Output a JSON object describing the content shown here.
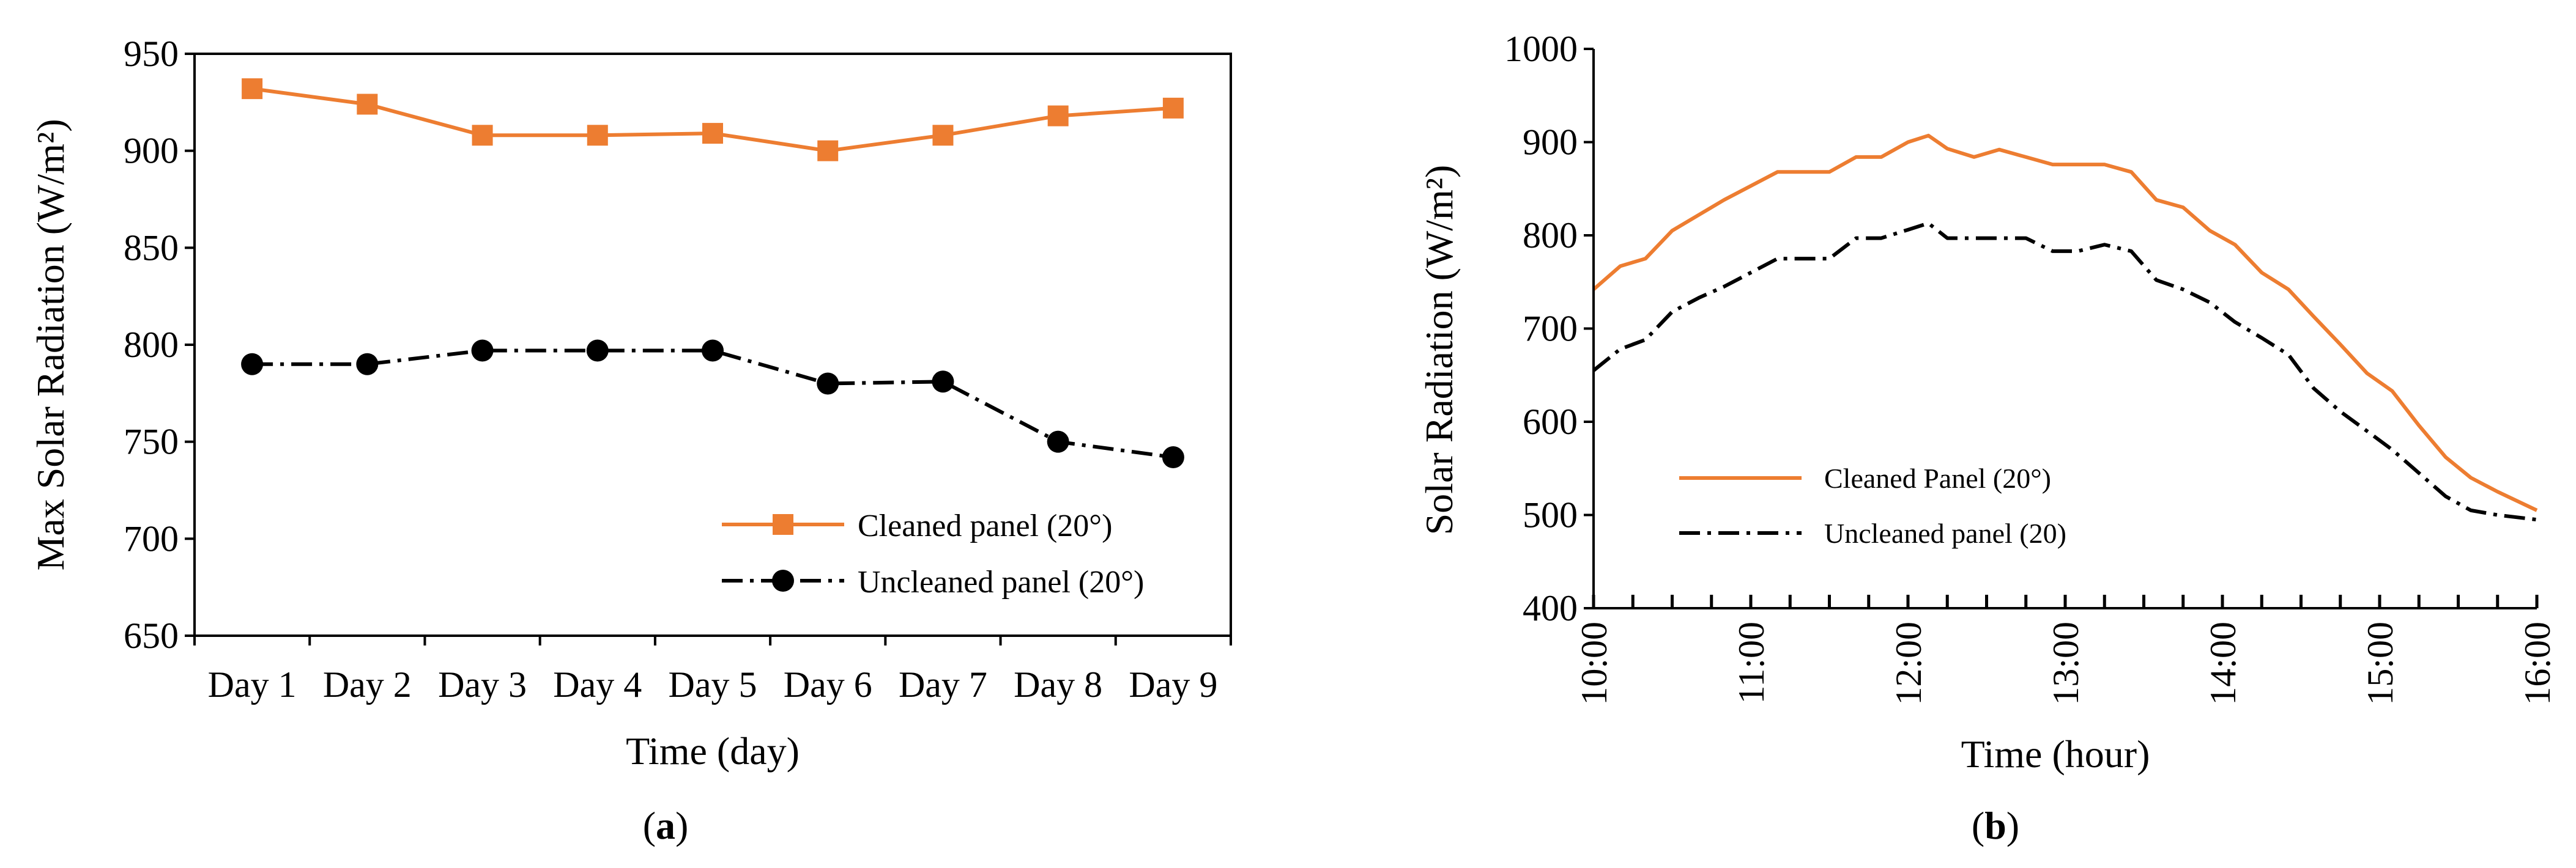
{
  "chart_data": [
    {
      "panel": "a",
      "type": "line",
      "caption": {
        "open": "(",
        "label": "a",
        "close": ")"
      },
      "xlabel": "Time (day)",
      "ylabel": "Max Solar Radiation (W/m²)",
      "ylim": [
        650,
        950
      ],
      "yticks": [
        650,
        700,
        750,
        800,
        850,
        900,
        950
      ],
      "categories": [
        "Day 1",
        "Day 2",
        "Day 3",
        "Day 4",
        "Day 5",
        "Day 6",
        "Day 7",
        "Day 8",
        "Day 9"
      ],
      "series": [
        {
          "name": "Cleaned panel (20°)",
          "color": "#ED7D31",
          "marker": "square",
          "dash": "solid",
          "values": [
            932,
            924,
            908,
            908,
            909,
            900,
            908,
            918,
            922
          ]
        },
        {
          "name": "Uncleaned panel (20°)",
          "color": "#000000",
          "marker": "circle",
          "dash": "dashdot",
          "values": [
            790,
            790,
            797,
            797,
            797,
            780,
            781,
            750,
            742
          ]
        }
      ],
      "legend": "lower-right"
    },
    {
      "panel": "b",
      "type": "line",
      "caption": {
        "open": "(",
        "label": "b",
        "close": ")"
      },
      "xlabel": "Time (hour)",
      "ylabel": "Solar Radiation (W/m²)",
      "ylim": [
        400,
        1000
      ],
      "yticks": [
        400,
        500,
        600,
        700,
        800,
        900,
        1000
      ],
      "xlim": [
        10,
        16
      ],
      "xticklabels": [
        "10:00",
        "11:00",
        "12:00",
        "13:00",
        "14:00",
        "15:00",
        "16:00"
      ],
      "xtick_hours": [
        10,
        11,
        12,
        13,
        14,
        15,
        16
      ],
      "minor_step_hours": 0.25,
      "series": [
        {
          "name": "Cleaned Panel (20°)",
          "color": "#ED7D31",
          "dash": "solid",
          "x": [
            10,
            10.17,
            10.33,
            10.5,
            10.67,
            10.83,
            11,
            11.17,
            11.33,
            11.5,
            11.67,
            11.83,
            12,
            12.13,
            12.25,
            12.42,
            12.58,
            12.75,
            12.92,
            13.08,
            13.25,
            13.42,
            13.58,
            13.75,
            13.92,
            14.08,
            14.25,
            14.42,
            14.58,
            14.75,
            14.92,
            15.08,
            15.25,
            15.42,
            15.58,
            15.75,
            16
          ],
          "values": [
            742,
            767,
            775,
            805,
            822,
            838,
            853,
            868,
            868,
            868,
            884,
            884,
            900,
            907,
            893,
            884,
            892,
            884,
            876,
            876,
            876,
            868,
            838,
            830,
            805,
            790,
            760,
            742,
            713,
            683,
            652,
            633,
            596,
            562,
            540,
            525,
            505
          ]
        },
        {
          "name": "Uncleaned panel (20)",
          "color": "#000000",
          "dash": "dashdot",
          "x": [
            10,
            10.17,
            10.33,
            10.5,
            10.67,
            10.83,
            11,
            11.17,
            11.33,
            11.5,
            11.67,
            11.83,
            12,
            12.13,
            12.25,
            12.42,
            12.58,
            12.75,
            12.92,
            13.08,
            13.25,
            13.42,
            13.58,
            13.75,
            13.92,
            14.08,
            14.25,
            14.42,
            14.58,
            14.75,
            14.92,
            15.08,
            15.25,
            15.42,
            15.58,
            15.75,
            16
          ],
          "values": [
            655,
            678,
            688,
            718,
            733,
            745,
            760,
            775,
            775,
            775,
            797,
            797,
            806,
            813,
            797,
            797,
            797,
            797,
            783,
            783,
            790,
            783,
            752,
            742,
            728,
            707,
            690,
            672,
            636,
            611,
            590,
            570,
            545,
            520,
            505,
            500,
            495
          ]
        }
      ],
      "legend": "lower-left-inside"
    }
  ]
}
